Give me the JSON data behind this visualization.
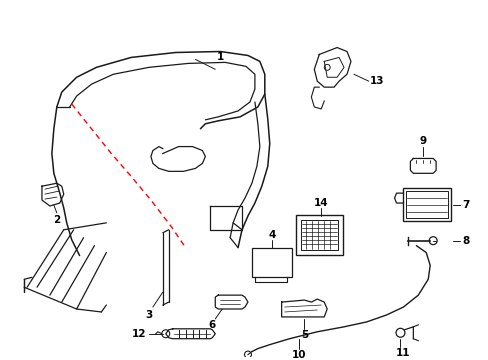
{
  "background_color": "#ffffff",
  "line_color": "#1a1a1a",
  "red_color": "#ff0000",
  "figsize": [
    4.89,
    3.6
  ],
  "dpi": 100,
  "xlim": [
    0,
    489
  ],
  "ylim": [
    0,
    360
  ]
}
